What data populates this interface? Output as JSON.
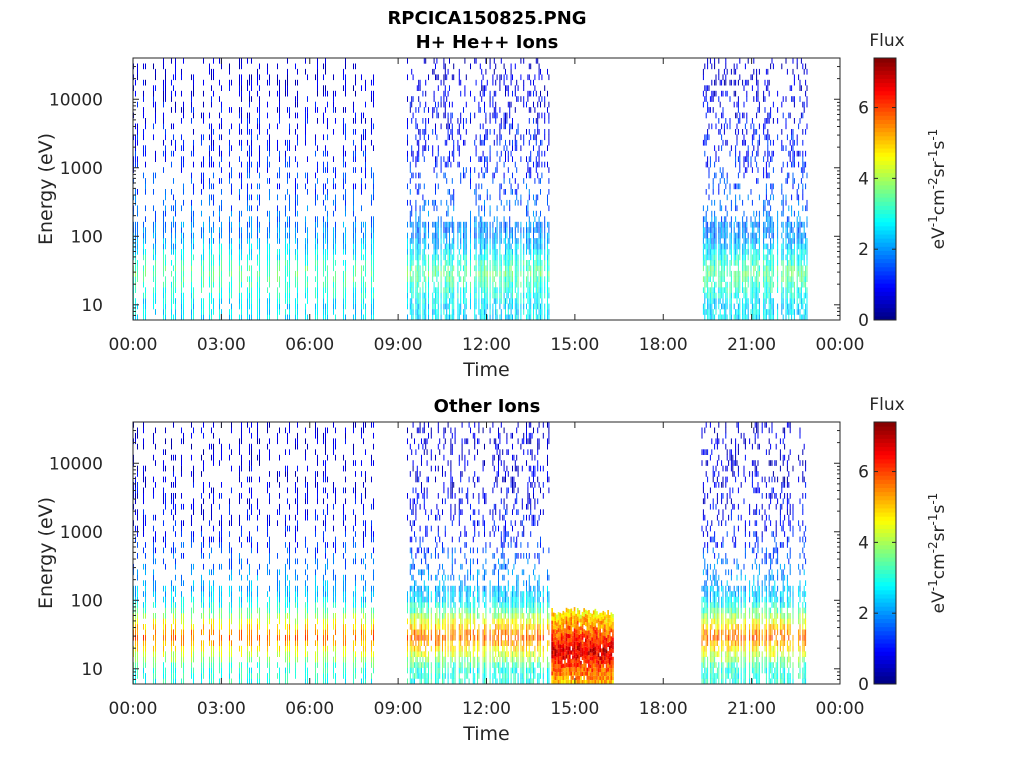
{
  "figure": {
    "title": "RPCICA150825.PNG"
  },
  "chart_data": [
    {
      "type": "heatmap",
      "title": "H+ He++ Ions",
      "xlabel": "Time",
      "ylabel": "Energy (eV)",
      "x_tick_labels": [
        "00:00",
        "03:00",
        "06:00",
        "09:00",
        "12:00",
        "15:00",
        "18:00",
        "21:00",
        "00:00"
      ],
      "x_ticks_hours": [
        0,
        3,
        6,
        9,
        12,
        15,
        18,
        21,
        24
      ],
      "xlim_hours": [
        0,
        24
      ],
      "y_scale": "log",
      "ylim": [
        6,
        40000
      ],
      "y_ticks": [
        10,
        100,
        1000,
        10000
      ],
      "y_tick_labels": [
        "10",
        "100",
        "1000",
        "10000"
      ],
      "colorbar": {
        "label_top": "Flux",
        "unit": "eV-1cm-2sr-1s-1",
        "range": [
          0,
          7.4
        ],
        "ticks": [
          0,
          2,
          4,
          6
        ],
        "tick_labels": [
          "0",
          "2",
          "4",
          "6"
        ],
        "colormap": "jet"
      },
      "data_intervals": [
        {
          "start_hour": 0.0,
          "end_hour": 8.2,
          "pattern": "periodic-stripes"
        },
        {
          "start_hour": 9.3,
          "end_hour": 14.1,
          "pattern": "dense"
        },
        {
          "start_hour": 19.3,
          "end_hour": 22.9,
          "pattern": "dense"
        }
      ],
      "energy_profile_log_flux": [
        {
          "energy_ev": 10,
          "flux": 2.6
        },
        {
          "energy_ev": 30,
          "flux": 3.5
        },
        {
          "energy_ev": 100,
          "flux": 2.0
        },
        {
          "energy_ev": 1000,
          "flux": 1.2
        },
        {
          "energy_ev": 10000,
          "flux": 0.8
        },
        {
          "energy_ev": 40000,
          "flux": 0.4
        }
      ]
    },
    {
      "type": "heatmap",
      "title": "Other Ions",
      "xlabel": "Time",
      "ylabel": "Energy (eV)",
      "x_tick_labels": [
        "00:00",
        "03:00",
        "06:00",
        "09:00",
        "12:00",
        "15:00",
        "18:00",
        "21:00",
        "00:00"
      ],
      "x_ticks_hours": [
        0,
        3,
        6,
        9,
        12,
        15,
        18,
        21,
        24
      ],
      "xlim_hours": [
        0,
        24
      ],
      "y_scale": "log",
      "ylim": [
        6,
        40000
      ],
      "y_ticks": [
        10,
        100,
        1000,
        10000
      ],
      "y_tick_labels": [
        "10",
        "100",
        "1000",
        "10000"
      ],
      "colorbar": {
        "label_top": "Flux",
        "unit": "eV-1cm-2sr-1s-1",
        "range": [
          0,
          7.4
        ],
        "ticks": [
          0,
          2,
          4,
          6
        ],
        "tick_labels": [
          "0",
          "2",
          "4",
          "6"
        ],
        "colormap": "jet"
      },
      "data_intervals": [
        {
          "start_hour": 0.0,
          "end_hour": 8.2,
          "pattern": "periodic-stripes"
        },
        {
          "start_hour": 9.3,
          "end_hour": 14.1,
          "pattern": "dense"
        },
        {
          "start_hour": 14.2,
          "end_hour": 16.3,
          "pattern": "intense-band",
          "energy_range_ev": [
            6,
            80
          ],
          "flux": 6.8
        },
        {
          "start_hour": 19.3,
          "end_hour": 22.9,
          "pattern": "dense"
        }
      ],
      "energy_profile_log_flux": [
        {
          "energy_ev": 10,
          "flux": 3.0
        },
        {
          "energy_ev": 30,
          "flux": 5.8
        },
        {
          "energy_ev": 100,
          "flux": 2.5
        },
        {
          "energy_ev": 1000,
          "flux": 1.0
        },
        {
          "energy_ev": 10000,
          "flux": 0.6
        }
      ]
    }
  ]
}
